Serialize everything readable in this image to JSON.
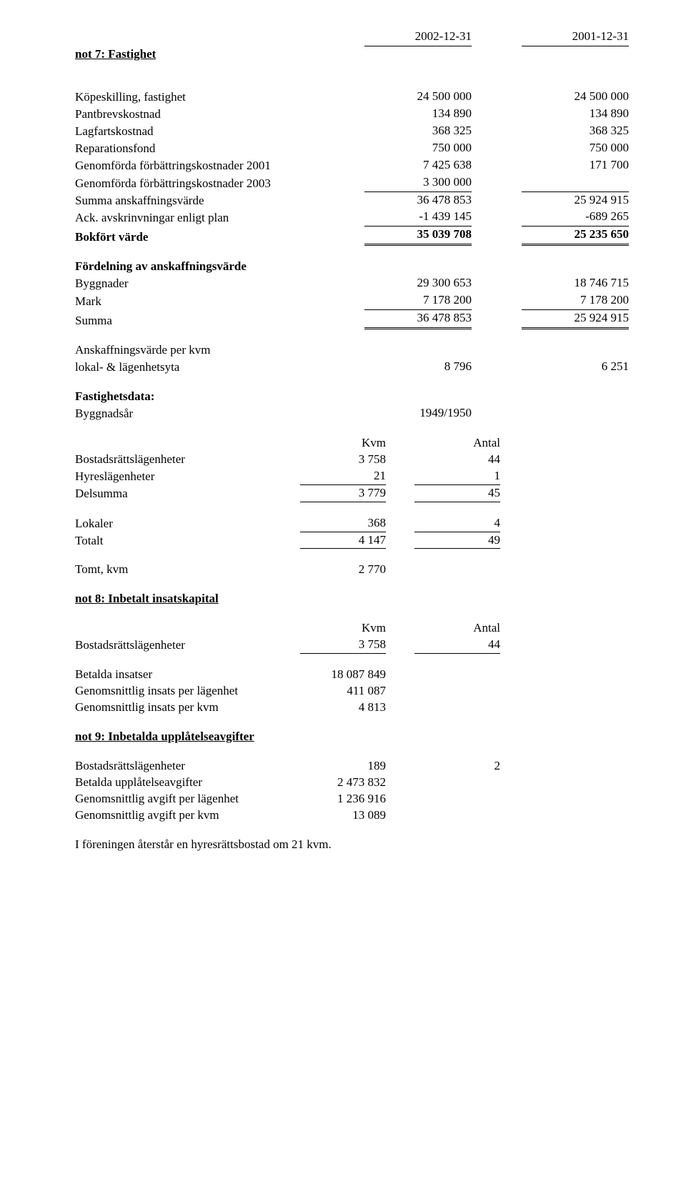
{
  "dates": {
    "c1": "2002-12-31",
    "c2": "2001-12-31"
  },
  "not7": {
    "heading": "not 7: Fastighet",
    "rows": {
      "kop": {
        "label": "Köpeskilling, fastighet",
        "c1": "24 500 000",
        "c2": "24 500 000"
      },
      "pant": {
        "label": "Pantbrevskostnad",
        "c1": "134 890",
        "c2": "134 890"
      },
      "lagf": {
        "label": "Lagfartskostnad",
        "c1": "368 325",
        "c2": "368 325"
      },
      "rep": {
        "label": "Reparationsfond",
        "c1": "750 000",
        "c2": "750 000"
      },
      "gf01": {
        "label": "Genomförda förbättringskostnader 2001",
        "c1": "7 425 638",
        "c2": "171 700"
      },
      "gf03": {
        "label": "Genomförda förbättringskostnader 2003",
        "c1": "3 300 000",
        "c2": ""
      },
      "sumav": {
        "label": "Summa anskaffningsvärde",
        "c1": "36 478 853",
        "c2": "25 924 915"
      },
      "ack": {
        "label": "Ack. avskrinvningar enligt plan",
        "c1": "-1 439 145",
        "c2": "-689 265"
      },
      "bokf": {
        "label": "Bokfört värde",
        "c1": "35 039 708",
        "c2": "25 235 650"
      }
    },
    "fordelning_heading": "Fördelning av anskaffningsvärde",
    "ford": {
      "bygg": {
        "label": "Byggnader",
        "c1": "29 300 653",
        "c2": "18 746 715"
      },
      "mark": {
        "label": "Mark",
        "c1": "7 178 200",
        "c2": "7 178 200"
      },
      "sum": {
        "label": "Summa",
        "c1": "36 478 853",
        "c2": "25 924 915"
      }
    },
    "avkvm_label1": "Anskaffningsvärde per kvm",
    "avkvm_label2": "lokal- & lägenhetsyta",
    "avkvm": {
      "c1": "8 796",
      "c2": "6 251"
    },
    "fdata_heading": "Fastighetsdata:",
    "byggnadsar_label": "Byggnadsår",
    "byggnadsar_value": "1949/1950",
    "kvm_antal_header": {
      "h1": "Kvm",
      "h2": "Antal"
    },
    "units": {
      "bost": {
        "label": "Bostadsrättslägenheter",
        "kvm": "3 758",
        "antal": "44"
      },
      "hyres": {
        "label": "Hyreslägenheter",
        "kvm": "21",
        "antal": "1"
      },
      "dels": {
        "label": "Delsumma",
        "kvm": "3 779",
        "antal": "45"
      },
      "lok": {
        "label": "Lokaler",
        "kvm": "368",
        "antal": "4"
      },
      "tot": {
        "label": "Totalt",
        "kvm": "4 147",
        "antal": "49"
      }
    },
    "tomt": {
      "label": "Tomt, kvm",
      "value": "2 770"
    }
  },
  "not8": {
    "heading": "not 8: Inbetalt insatskapital",
    "header": {
      "h1": "Kvm",
      "h2": "Antal"
    },
    "bost": {
      "label": "Bostadsrättslägenheter",
      "kvm": "3 758",
      "antal": "44"
    },
    "rows": {
      "bet": {
        "label": "Betalda insatser",
        "value": "18 087 849"
      },
      "gslag": {
        "label": "Genomsnittlig insats per lägenhet",
        "value": "411 087"
      },
      "gskvm": {
        "label": "Genomsnittlig insats per kvm",
        "value": "4 813"
      }
    }
  },
  "not9": {
    "heading": "not 9: Inbetalda upplåtelseavgifter",
    "bost": {
      "label": "Bostadsrättslägenheter",
      "c1": "189",
      "c2": "2"
    },
    "rows": {
      "bet": {
        "label": "Betalda upplåtelseavgifter",
        "value": "2 473 832"
      },
      "gslag": {
        "label": "Genomsnittlig avgift per lägenhet",
        "value": "1 236 916"
      },
      "gskvm": {
        "label": "Genomsnittlig avgift per kvm",
        "value": "13 089"
      }
    },
    "footnote": "I föreningen återstår en hyresrättsbostad om 21 kvm."
  }
}
